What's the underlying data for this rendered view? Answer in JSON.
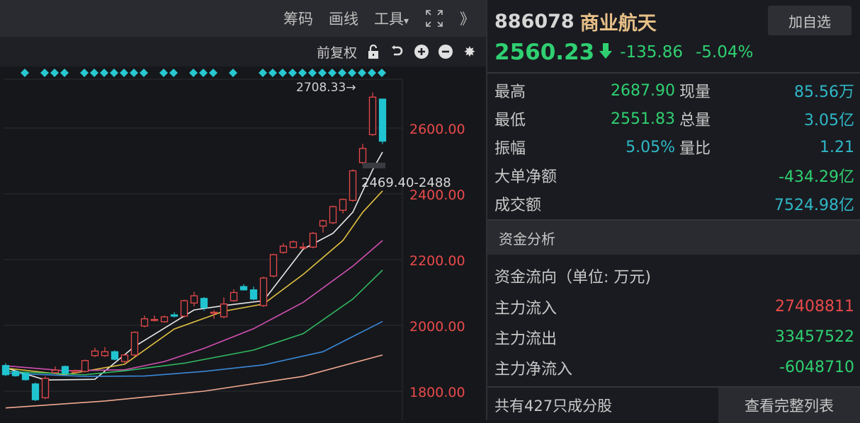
{
  "toolbar": {
    "chips": "筹码",
    "draw": "画线",
    "tools": "工具",
    "tools_caret": "▾",
    "fullscreen_icon": "expand-icon",
    "more": "》"
  },
  "subtoolbar": {
    "adjust": "前复权",
    "icons": [
      "unlock-icon",
      "undo-icon",
      "zoom-in-icon",
      "zoom-out-icon",
      "gear-icon"
    ]
  },
  "colors": {
    "up": "#e84a4a",
    "down": "#20c4d0",
    "green": "#2fd071",
    "teal": "#2fb8c8",
    "red": "#e84a4a",
    "name": "#e7c088"
  },
  "chart_data": {
    "type": "candlestick",
    "y_ticks": [
      "2600.00",
      "2400.00",
      "2200.00",
      "2000.00",
      "1800.00"
    ],
    "y_tick_values": [
      2600,
      2400,
      2200,
      2000,
      1800
    ],
    "ylim": [
      1730,
      2735
    ],
    "grid": true,
    "high_label": "2708.33→",
    "cursor_label": "2469.40-2488",
    "marker_candles": [
      2,
      4,
      5,
      6,
      8,
      9,
      10,
      11,
      12,
      13,
      14,
      16,
      17,
      19,
      20,
      21,
      23,
      26,
      27,
      28,
      29,
      30,
      31,
      32,
      33,
      34,
      35,
      36,
      37,
      38
    ],
    "candles": [
      [
        1878,
        1885,
        1846,
        1850
      ],
      [
        1860,
        1864,
        1844,
        1847
      ],
      [
        1854,
        1858,
        1832,
        1835
      ],
      [
        1822,
        1826,
        1770,
        1774
      ],
      [
        1780,
        1845,
        1776,
        1839
      ],
      [
        1856,
        1875,
        1852,
        1864
      ],
      [
        1875,
        1878,
        1850,
        1854
      ],
      [
        1858,
        1866,
        1854,
        1862
      ],
      [
        1860,
        1896,
        1856,
        1893
      ],
      [
        1908,
        1932,
        1904,
        1922
      ],
      [
        1908,
        1934,
        1904,
        1920
      ],
      [
        1920,
        1924,
        1894,
        1897
      ],
      [
        1890,
        1914,
        1886,
        1910
      ],
      [
        1910,
        1982,
        1906,
        1979
      ],
      [
        1998,
        2030,
        1994,
        2020
      ],
      [
        2016,
        2030,
        2012,
        2018
      ],
      [
        2011,
        2030,
        2008,
        2026
      ],
      [
        2032,
        2040,
        2024,
        2028
      ],
      [
        2028,
        2078,
        2024,
        2075
      ],
      [
        2068,
        2102,
        2058,
        2090
      ],
      [
        2082,
        2086,
        2044,
        2054
      ],
      [
        2038,
        2046,
        2020,
        2040
      ],
      [
        2026,
        2085,
        2022,
        2065
      ],
      [
        2075,
        2110,
        2072,
        2100
      ],
      [
        2118,
        2125,
        2106,
        2108
      ],
      [
        2108,
        2118,
        2076,
        2080
      ],
      [
        2060,
        2148,
        2056,
        2144
      ],
      [
        2150,
        2218,
        2146,
        2215
      ],
      [
        2222,
        2250,
        2218,
        2241
      ],
      [
        2237,
        2258,
        2234,
        2254
      ],
      [
        2236,
        2252,
        2232,
        2238
      ],
      [
        2238,
        2284,
        2234,
        2280
      ],
      [
        2302,
        2322,
        2282,
        2318
      ],
      [
        2312,
        2364,
        2308,
        2361
      ],
      [
        2350,
        2386,
        2340,
        2383
      ],
      [
        2380,
        2474,
        2376,
        2470
      ],
      [
        2495,
        2552,
        2490,
        2538
      ],
      [
        2580,
        2708.33,
        2576,
        2694
      ],
      [
        2688,
        2687.9,
        2551.83,
        2560
      ]
    ],
    "ma_lines": [
      {
        "color": "#e8e8e8",
        "points": [
          [
            0,
            1871
          ],
          [
            4,
            1834
          ],
          [
            9,
            1836
          ],
          [
            13,
            1936
          ],
          [
            19,
            2047
          ],
          [
            22,
            2060
          ],
          [
            26,
            2075
          ],
          [
            30,
            2232
          ],
          [
            33,
            2280
          ],
          [
            35,
            2344
          ],
          [
            37,
            2473
          ],
          [
            38,
            2527
          ]
        ]
      },
      {
        "color": "#e0c040",
        "points": [
          [
            0,
            1870
          ],
          [
            6,
            1850
          ],
          [
            12,
            1882
          ],
          [
            17,
            1989
          ],
          [
            22,
            2043
          ],
          [
            26,
            2065
          ],
          [
            30,
            2155
          ],
          [
            34,
            2258
          ],
          [
            36,
            2344
          ],
          [
            38,
            2409
          ]
        ]
      },
      {
        "color": "#d050b0",
        "points": [
          [
            0,
            1877
          ],
          [
            6,
            1862
          ],
          [
            12,
            1865
          ],
          [
            16,
            1890
          ],
          [
            20,
            1930
          ],
          [
            25,
            1990
          ],
          [
            30,
            2070
          ],
          [
            35,
            2180
          ],
          [
            38,
            2258
          ]
        ]
      },
      {
        "color": "#30b860",
        "points": [
          [
            0,
            1860
          ],
          [
            8,
            1850
          ],
          [
            12,
            1862
          ],
          [
            18,
            1885
          ],
          [
            25,
            1925
          ],
          [
            30,
            1975
          ],
          [
            35,
            2080
          ],
          [
            38,
            2168
          ]
        ]
      },
      {
        "color": "#3a88d8",
        "points": [
          [
            0,
            1855
          ],
          [
            8,
            1845
          ],
          [
            14,
            1846
          ],
          [
            20,
            1860
          ],
          [
            26,
            1880
          ],
          [
            32,
            1920
          ],
          [
            38,
            2012
          ]
        ]
      },
      {
        "color": "#f0a890",
        "points": [
          [
            0,
            1749
          ],
          [
            10,
            1770
          ],
          [
            20,
            1800
          ],
          [
            30,
            1845
          ],
          [
            38,
            1910
          ]
        ]
      }
    ]
  },
  "quote": {
    "code": "886078",
    "name": "商业航天",
    "add_watchlist": "加自选",
    "price": "2560.23",
    "arrow": "🡇",
    "change": "-135.86",
    "change_pct": "-5.04%",
    "stats": [
      {
        "l1": "最高",
        "v1": "2687.90",
        "c1": "#2fd071",
        "l2": "现量",
        "v2": "85.56万",
        "c2": "#2fb8c8"
      },
      {
        "l1": "最低",
        "v1": "2551.83",
        "c1": "#2fd071",
        "l2": "总量",
        "v2": "3.05亿",
        "c2": "#2fb8c8"
      },
      {
        "l1": "振幅",
        "v1": "5.05%",
        "c1": "#2fb8c8",
        "l2": "量比",
        "v2": "1.21",
        "c2": "#2fb8c8"
      }
    ],
    "big_order_label": "大单净额",
    "big_order_value": "-434.29亿",
    "turnover_label": "成交额",
    "turnover_value": "7524.98亿"
  },
  "funds": {
    "section": "资金分析",
    "title": "资金流向（单位: 万元)",
    "rows": [
      {
        "label": "主力流入",
        "value": "27408811",
        "color": "#e84a4a"
      },
      {
        "label": "主力流出",
        "value": "33457522",
        "color": "#2fd071"
      },
      {
        "label": "主力净流入",
        "value": "-6048710",
        "color": "#2fd071"
      }
    ],
    "constituents": "共有427只成分股",
    "full_list": "查看完整列表"
  }
}
